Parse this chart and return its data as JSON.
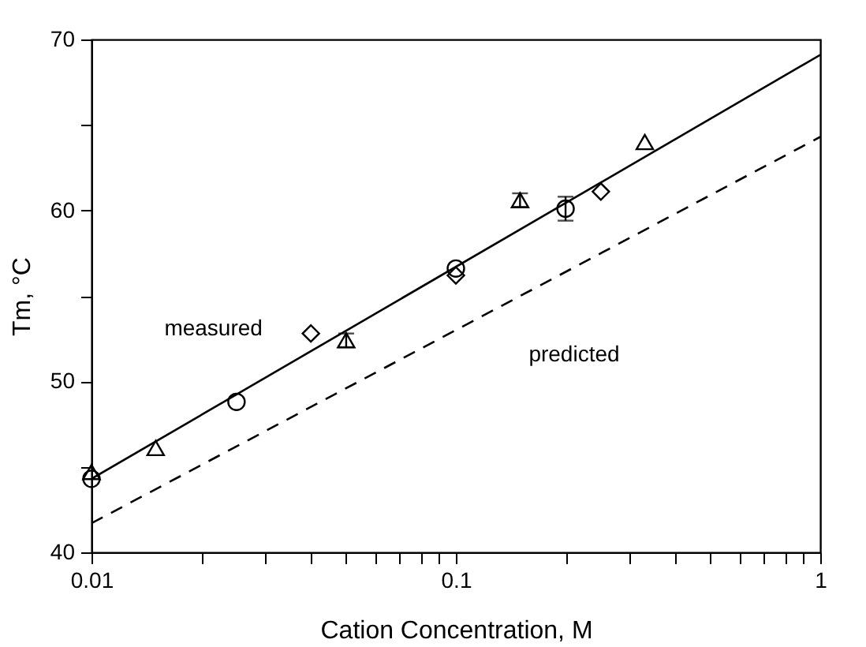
{
  "chart_data": {
    "type": "scatter",
    "xlabel": "Cation Concentration, M",
    "ylabel": "Tm, °C",
    "log": "x",
    "grid": false,
    "xlim": [
      0.01,
      1
    ],
    "ylim": [
      40,
      70
    ],
    "xticks": [
      0.01,
      {
        "value": 0.02,
        "label": null
      },
      {
        "value": 0.03,
        "label": null
      },
      {
        "value": 0.04,
        "label": null
      },
      {
        "value": 0.05,
        "label": null
      },
      {
        "value": 0.06,
        "label": null
      },
      {
        "value": 0.07,
        "label": null
      },
      {
        "value": 0.08,
        "label": null
      },
      {
        "value": 0.09,
        "label": null
      },
      0.1,
      {
        "value": 0.2,
        "label": null
      },
      {
        "value": 0.3,
        "label": null
      },
      {
        "value": 0.4,
        "label": null
      },
      {
        "value": 0.5,
        "label": null
      },
      {
        "value": 0.6,
        "label": null
      },
      {
        "value": 0.7,
        "label": null
      },
      {
        "value": 0.8,
        "label": null
      },
      {
        "value": 0.9,
        "label": null
      },
      1
    ],
    "yticks": [
      40,
      {
        "value": 45,
        "label": null
      },
      50,
      {
        "value": 55,
        "label": null
      },
      60,
      {
        "value": 65,
        "label": null
      },
      70
    ],
    "series": [
      {
        "type": "line",
        "color": "#000000",
        "line_style": "solid",
        "x": [
          0.01,
          1
        ],
        "values": [
          44.3,
          69.1
        ]
      },
      {
        "type": "line",
        "color": "#000000",
        "line_style": "dashed",
        "x": [
          0.01,
          1
        ],
        "values": [
          41.7,
          64.3
        ]
      },
      {
        "marker": "circle",
        "color": "#000000",
        "x": [
          0.01,
          0.025,
          0.1,
          0.2
        ],
        "values": [
          44.3,
          48.8,
          56.6,
          60.1
        ],
        "errors": [
          null,
          null,
          null,
          0.7
        ]
      },
      {
        "marker": "triangle",
        "color": "#000000",
        "x": [
          0.01,
          0.05,
          0.15,
          0.33
        ],
        "values": [
          44.7,
          52.4,
          60.6,
          64.0
        ],
        "errors": [
          null,
          0.4,
          0.4,
          null
        ]
      },
      {
        "marker": "triangle",
        "color": "#000000",
        "x": [
          0.015
        ],
        "values": [
          46.1
        ]
      },
      {
        "marker": "diamond",
        "color": "#000000",
        "x": [
          0.04,
          0.1,
          0.25
        ],
        "values": [
          52.8,
          56.2,
          61.1
        ]
      }
    ],
    "annotations": [
      "measured",
      "predicted"
    ]
  }
}
